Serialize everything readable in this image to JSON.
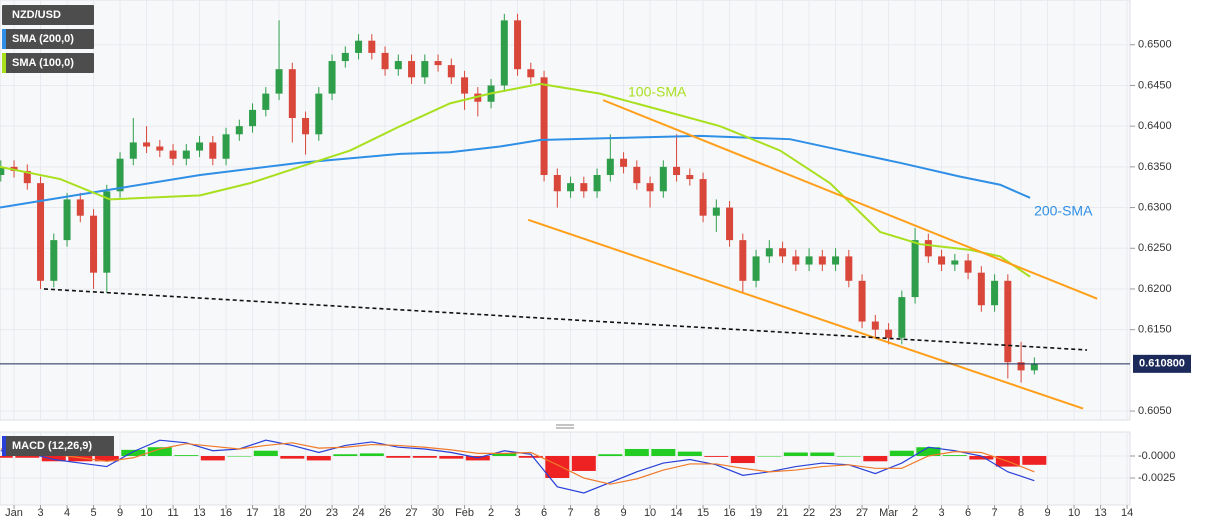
{
  "chart_data": [
    {
      "type": "candlestick",
      "xlim": [
        -0.53,
        42.11
      ],
      "ylim": [
        0.6039,
        0.6555
      ],
      "yticks": [
        {
          "value": 0.605,
          "label": "0.6050"
        },
        {
          "value": 0.615,
          "label": "0.6150"
        },
        {
          "value": 0.62,
          "label": "0.6200"
        },
        {
          "value": 0.625,
          "label": "0.6250"
        },
        {
          "value": 0.63,
          "label": "0.6300"
        },
        {
          "value": 0.635,
          "label": "0.6350"
        },
        {
          "value": 0.64,
          "label": "0.6400"
        },
        {
          "value": 0.645,
          "label": "0.6450"
        },
        {
          "value": 0.65,
          "label": "0.6500"
        }
      ],
      "grid": true,
      "last_price": {
        "value": 0.6108,
        "label": "0.610800",
        "color": "#1b2a5a"
      },
      "series": [
        {
          "name": "NZD/USD",
          "color_up": "#2e9e4a",
          "color_down": "#d9473a",
          "x": [
            -0.5,
            0,
            0.5,
            1,
            1.5,
            2,
            2.5,
            3,
            3.5,
            4,
            4.5,
            5,
            5.5,
            6,
            6.5,
            7,
            7.5,
            8,
            8.5,
            9,
            9.5,
            10,
            10.5,
            11,
            11.5,
            12,
            12.5,
            13,
            13.5,
            14,
            14.5,
            15,
            15.5,
            16,
            16.5,
            17,
            17.5,
            18,
            18.5,
            19,
            19.5,
            20,
            20.5,
            21,
            21.5,
            22,
            22.5,
            23,
            23.5,
            24,
            24.5,
            25,
            25.5,
            26,
            26.5,
            27,
            27.5,
            28,
            28.5,
            29,
            29.5,
            30,
            30.5,
            31,
            31.5,
            32,
            32.5,
            33,
            33.5,
            34,
            34.5,
            35,
            35.5,
            36,
            36.5,
            37,
            37.5,
            38,
            38.5
          ],
          "open": [
            0.634,
            0.635,
            0.6345,
            0.633,
            0.621,
            0.626,
            0.631,
            0.629,
            0.622,
            0.632,
            0.636,
            0.638,
            0.6375,
            0.637,
            0.636,
            0.637,
            0.638,
            0.636,
            0.639,
            0.64,
            0.642,
            0.644,
            0.647,
            0.641,
            0.639,
            0.644,
            0.648,
            0.649,
            0.6505,
            0.649,
            0.647,
            0.648,
            0.646,
            0.648,
            0.6475,
            0.646,
            0.644,
            0.643,
            0.645,
            0.653,
            0.647,
            0.646,
            0.634,
            0.632,
            0.633,
            0.632,
            0.634,
            0.636,
            0.635,
            0.633,
            0.632,
            0.635,
            0.634,
            0.6335,
            0.629,
            0.63,
            0.626,
            0.621,
            0.624,
            0.625,
            0.624,
            0.623,
            0.624,
            0.623,
            0.624,
            0.621,
            0.616,
            0.615,
            0.614,
            0.619,
            0.626,
            0.624,
            0.623,
            0.6235,
            0.622,
            0.618,
            0.621,
            0.611,
            0.61
          ],
          "high": [
            0.6358,
            0.6358,
            0.6353,
            0.6338,
            0.6268,
            0.6318,
            0.6318,
            0.6298,
            0.6328,
            0.6368,
            0.641,
            0.64,
            0.6383,
            0.6378,
            0.6378,
            0.6388,
            0.6388,
            0.6398,
            0.6408,
            0.6428,
            0.6448,
            0.653,
            0.6478,
            0.6418,
            0.6448,
            0.6488,
            0.6498,
            0.6513,
            0.6513,
            0.6498,
            0.6488,
            0.6488,
            0.6488,
            0.6488,
            0.6483,
            0.6468,
            0.6448,
            0.6458,
            0.6538,
            0.6538,
            0.6478,
            0.6468,
            0.6348,
            0.6338,
            0.6338,
            0.6348,
            0.639,
            0.6368,
            0.6358,
            0.6338,
            0.6358,
            0.639,
            0.6348,
            0.6343,
            0.631,
            0.6308,
            0.6268,
            0.6248,
            0.626,
            0.6258,
            0.6248,
            0.625,
            0.6248,
            0.625,
            0.6248,
            0.6218,
            0.6168,
            0.6158,
            0.6198,
            0.6275,
            0.6268,
            0.6248,
            0.6243,
            0.6243,
            0.6228,
            0.6218,
            0.6218,
            0.6135,
            0.6116
          ],
          "low": [
            0.6332,
            0.6337,
            0.6322,
            0.62,
            0.6202,
            0.6252,
            0.6282,
            0.62,
            0.6195,
            0.6312,
            0.6352,
            0.6367,
            0.6362,
            0.6352,
            0.6352,
            0.6362,
            0.6352,
            0.6352,
            0.6382,
            0.6392,
            0.6412,
            0.6432,
            0.638,
            0.6365,
            0.6382,
            0.6432,
            0.6472,
            0.6482,
            0.6482,
            0.6462,
            0.6462,
            0.6452,
            0.6452,
            0.6467,
            0.6452,
            0.642,
            0.6412,
            0.6422,
            0.6442,
            0.6462,
            0.6452,
            0.6332,
            0.63,
            0.6312,
            0.6312,
            0.6312,
            0.6332,
            0.6342,
            0.6322,
            0.63,
            0.6312,
            0.6332,
            0.6327,
            0.6282,
            0.627,
            0.6252,
            0.6195,
            0.6202,
            0.6232,
            0.6232,
            0.6222,
            0.6222,
            0.6222,
            0.6222,
            0.6202,
            0.6152,
            0.614,
            0.6132,
            0.6132,
            0.6182,
            0.6232,
            0.6222,
            0.6222,
            0.6212,
            0.6172,
            0.6172,
            0.609,
            0.6085,
            0.6095
          ],
          "close": [
            0.635,
            0.6345,
            0.633,
            0.621,
            0.626,
            0.631,
            0.629,
            0.622,
            0.632,
            0.636,
            0.638,
            0.6375,
            0.637,
            0.636,
            0.637,
            0.638,
            0.636,
            0.639,
            0.64,
            0.642,
            0.644,
            0.647,
            0.641,
            0.639,
            0.644,
            0.648,
            0.649,
            0.6505,
            0.649,
            0.647,
            0.648,
            0.646,
            0.648,
            0.6475,
            0.646,
            0.644,
            0.643,
            0.645,
            0.653,
            0.647,
            0.646,
            0.634,
            0.632,
            0.633,
            0.632,
            0.634,
            0.636,
            0.635,
            0.633,
            0.632,
            0.635,
            0.634,
            0.6335,
            0.629,
            0.63,
            0.626,
            0.621,
            0.624,
            0.625,
            0.624,
            0.623,
            0.624,
            0.623,
            0.624,
            0.621,
            0.616,
            0.615,
            0.614,
            0.619,
            0.626,
            0.624,
            0.623,
            0.6235,
            0.622,
            0.618,
            0.621,
            0.611,
            0.61,
            0.6108
          ]
        },
        {
          "name": "SMA (200,0)",
          "color": "#2f8fe6",
          "label": "200-SMA",
          "x": [
            -0.53,
            3.25,
            7.02,
            10.79,
            14.57,
            16.45,
            18.34,
            19.85,
            22.11,
            25.89,
            29.28,
            31.55,
            33.43,
            35.7,
            37.21,
            38.34
          ],
          "values": [
            0.63,
            0.632,
            0.634,
            0.6355,
            0.6366,
            0.6368,
            0.6375,
            0.6383,
            0.6385,
            0.6388,
            0.6384,
            0.6368,
            0.6355,
            0.6338,
            0.6328,
            0.6312
          ]
        },
        {
          "name": "SMA (100,0)",
          "color": "#a8e01e",
          "label": "100-SMA",
          "x": [
            -0.53,
            1.74,
            3.62,
            7.02,
            8.91,
            10.79,
            12.68,
            14.57,
            16.45,
            17.96,
            19.85,
            22.11,
            24.38,
            26.64,
            28.91,
            30.79,
            32.68,
            34.19,
            36.08,
            37.21,
            38.34
          ],
          "values": [
            0.635,
            0.6335,
            0.631,
            0.6315,
            0.633,
            0.635,
            0.637,
            0.64,
            0.6428,
            0.644,
            0.6452,
            0.644,
            0.642,
            0.64,
            0.637,
            0.633,
            0.627,
            0.6255,
            0.6248,
            0.624,
            0.6215
          ]
        }
      ],
      "trendlines": [
        {
          "color": "#ff9f1a",
          "dashed": false,
          "x": [
            22.23,
            40.87
          ],
          "values": [
            0.6432,
            0.6188
          ]
        },
        {
          "color": "#ff9f1a",
          "dashed": false,
          "x": [
            19.4,
            40.34
          ],
          "values": [
            0.6285,
            0.6053
          ]
        },
        {
          "color": "#111111",
          "dashed": true,
          "x": [
            1.13,
            40.49
          ],
          "values": [
            0.62,
            0.6125
          ]
        }
      ]
    },
    {
      "type": "macd",
      "legend": "MACD (12,26,9)",
      "xlim": [
        -0.53,
        42.11
      ],
      "ylim": [
        -0.00557,
        0.00273
      ],
      "yticks": [
        {
          "value": 0,
          "label": "-0.0000"
        },
        {
          "value": -0.0025,
          "label": "-0.0025"
        }
      ],
      "xticks": [
        {
          "value": 0,
          "label": "Jan"
        },
        {
          "value": 1,
          "label": "3"
        },
        {
          "value": 2,
          "label": "4"
        },
        {
          "value": 3,
          "label": "5"
        },
        {
          "value": 4,
          "label": "9"
        },
        {
          "value": 5,
          "label": "10"
        },
        {
          "value": 6,
          "label": "11"
        },
        {
          "value": 7,
          "label": "13"
        },
        {
          "value": 8,
          "label": "16"
        },
        {
          "value": 9,
          "label": "17"
        },
        {
          "value": 10,
          "label": "18"
        },
        {
          "value": 11,
          "label": "20"
        },
        {
          "value": 12,
          "label": "23"
        },
        {
          "value": 13,
          "label": "24"
        },
        {
          "value": 14,
          "label": "26"
        },
        {
          "value": 15,
          "label": "27"
        },
        {
          "value": 16,
          "label": "30"
        },
        {
          "value": 17,
          "label": "Feb"
        },
        {
          "value": 18,
          "label": "2"
        },
        {
          "value": 19,
          "label": "3"
        },
        {
          "value": 20,
          "label": "6"
        },
        {
          "value": 21,
          "label": "7"
        },
        {
          "value": 22,
          "label": "8"
        },
        {
          "value": 23,
          "label": "9"
        },
        {
          "value": 24,
          "label": "10"
        },
        {
          "value": 25,
          "label": "14"
        },
        {
          "value": 26,
          "label": "15"
        },
        {
          "value": 27,
          "label": "16"
        },
        {
          "value": 28,
          "label": "19"
        },
        {
          "value": 29,
          "label": "21"
        },
        {
          "value": 30,
          "label": "22"
        },
        {
          "value": 31,
          "label": "23"
        },
        {
          "value": 32,
          "label": "27"
        },
        {
          "value": 33,
          "label": "Mar"
        },
        {
          "value": 34,
          "label": "2"
        },
        {
          "value": 35,
          "label": "3"
        },
        {
          "value": 36,
          "label": "6"
        },
        {
          "value": 37,
          "label": "7"
        },
        {
          "value": 38,
          "label": "8"
        },
        {
          "value": 39,
          "label": "9"
        },
        {
          "value": 40,
          "label": "10"
        },
        {
          "value": 41,
          "label": "13"
        },
        {
          "value": 42,
          "label": "14"
        }
      ],
      "x": [
        -0.5,
        0.5,
        1.5,
        2.5,
        3.5,
        4.5,
        5.5,
        6.5,
        7.5,
        8.5,
        9.5,
        10.5,
        11.5,
        12.5,
        13.5,
        14.5,
        15.5,
        16.5,
        17.5,
        18.5,
        19.5,
        20.5,
        21.5,
        22.5,
        23.5,
        24.5,
        25.5,
        26.5,
        27.5,
        28.5,
        29.5,
        30.5,
        31.5,
        32.5,
        33.5,
        34.5,
        35.5,
        36.5,
        37.5,
        38.5
      ],
      "histogram": {
        "color_up": "#22cc22",
        "color_down": "#ee2222",
        "values": [
          -0.0002,
          -0.0002,
          -0.0006,
          -0.0006,
          -0.0006,
          0.0007,
          0.001,
          0.0001,
          -0.0005,
          0,
          0.0006,
          -0.0003,
          -0.0005,
          0.0002,
          0.0003,
          -0.0002,
          -0.0002,
          -0.0003,
          -0.0005,
          0.0003,
          -0.0002,
          -0.0025,
          -0.0017,
          0.0002,
          0.0008,
          0.0008,
          0.0005,
          -0.0001,
          -0.0008,
          0,
          0.0004,
          0.0004,
          0,
          -0.0006,
          0.0006,
          0.001,
          0.0001,
          -0.0004,
          -0.0012,
          -0.001
        ]
      },
      "series": [
        {
          "color": "#2840d8",
          "values": [
            0.0006,
            0.0004,
            -0.0004,
            -0.0008,
            -0.0012,
            0.0005,
            0.0018,
            0.0015,
            0.0006,
            0.0008,
            0.0018,
            0.0012,
            0.0004,
            0.0012,
            0.0016,
            0.001,
            0.0008,
            0.0004,
            -0.0002,
            0.0006,
            0.0002,
            -0.0035,
            -0.0042,
            -0.003,
            -0.0018,
            -0.0008,
            -0.0004,
            -0.001,
            -0.0022,
            -0.0018,
            -0.0012,
            -0.0008,
            -0.001,
            -0.002,
            -0.0008,
            0.001,
            0.0006,
            0,
            -0.0018,
            -0.0028
          ]
        },
        {
          "color": "#f07a2a",
          "values": [
            0.0008,
            0.0006,
            0.0002,
            -0.0002,
            -0.0006,
            -0.0002,
            0.0008,
            0.0014,
            0.0011,
            0.0008,
            0.0012,
            0.0015,
            0.0009,
            0.001,
            0.0013,
            0.0012,
            0.001,
            0.0007,
            0.0003,
            0.0003,
            0.0004,
            -0.001,
            -0.0025,
            -0.0032,
            -0.0026,
            -0.0016,
            -0.0009,
            -0.0009,
            -0.0014,
            -0.0018,
            -0.0016,
            -0.0012,
            -0.001,
            -0.0014,
            -0.0014,
            0,
            0.0005,
            0.0004,
            -0.0006,
            -0.0018
          ]
        }
      ]
    }
  ]
}
